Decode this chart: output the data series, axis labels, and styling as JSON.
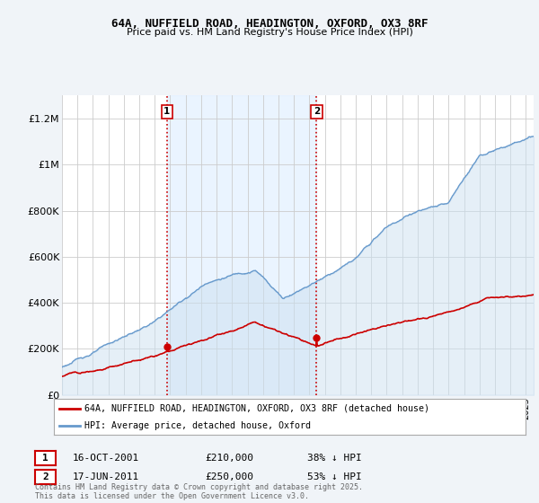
{
  "title": "64A, NUFFIELD ROAD, HEADINGTON, OXFORD, OX3 8RF",
  "subtitle": "Price paid vs. HM Land Registry's House Price Index (HPI)",
  "ylabel_ticks": [
    "£0",
    "£200K",
    "£400K",
    "£600K",
    "£800K",
    "£1M",
    "£1.2M"
  ],
  "ytick_values": [
    0,
    200000,
    400000,
    600000,
    800000,
    1000000,
    1200000
  ],
  "ylim": [
    0,
    1300000
  ],
  "xlim_start": 1995.0,
  "xlim_end": 2025.5,
  "sale1_date": "16-OCT-2001",
  "sale1_price": 210000,
  "sale1_hpi_pct": "38% ↓ HPI",
  "sale1_x": 2001.79,
  "sale2_date": "17-JUN-2011",
  "sale2_price": 250000,
  "sale2_hpi_pct": "53% ↓ HPI",
  "sale2_x": 2011.46,
  "legend_label_red": "64A, NUFFIELD ROAD, HEADINGTON, OXFORD, OX3 8RF (detached house)",
  "legend_label_blue": "HPI: Average price, detached house, Oxford",
  "footer": "Contains HM Land Registry data © Crown copyright and database right 2025.\nThis data is licensed under the Open Government Licence v3.0.",
  "red_color": "#cc0000",
  "blue_color": "#6699cc",
  "blue_fill_color": "#cce0f0",
  "background_color": "#f0f4f8",
  "plot_bg_color": "#ffffff",
  "grid_color": "#cccccc",
  "shading_color": "#ddeeff"
}
